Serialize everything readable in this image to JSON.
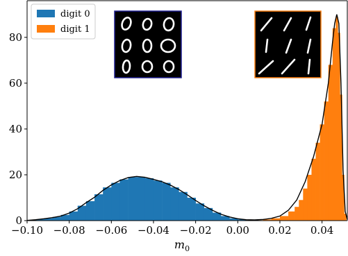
{
  "chart_data": {
    "type": "bar",
    "xlabel": "m",
    "xlabel_sub": "0",
    "xlim": [
      -0.1,
      0.052
    ],
    "ylim": [
      0,
      96
    ],
    "xticks": [
      "-0.10",
      "-0.08",
      "-0.06",
      "-0.04",
      "-0.02",
      "0.00",
      "0.02",
      "0.04"
    ],
    "xtick_values": [
      -0.1,
      -0.08,
      -0.06,
      -0.04,
      -0.02,
      0.0,
      0.02,
      0.04
    ],
    "yticks": [
      "0",
      "20",
      "40",
      "60",
      "80"
    ],
    "ytick_values": [
      0,
      20,
      40,
      60,
      80
    ],
    "grid": false,
    "legend_position": "top-left",
    "series": [
      {
        "name": "digit 0",
        "color": "#1f77b4",
        "x": [
          -0.098,
          -0.094,
          -0.09,
          -0.086,
          -0.082,
          -0.078,
          -0.074,
          -0.07,
          -0.066,
          -0.062,
          -0.058,
          -0.054,
          -0.05,
          -0.046,
          -0.042,
          -0.038,
          -0.034,
          -0.03,
          -0.026,
          -0.022,
          -0.018,
          -0.014,
          -0.01,
          -0.006,
          -0.002,
          0.002,
          0.006
        ],
        "values": [
          0.3,
          0.6,
          1.0,
          1.6,
          2.5,
          4.0,
          6.5,
          8.5,
          11.5,
          14.5,
          16.5,
          18.0,
          19.0,
          19.0,
          18.5,
          17.5,
          16.5,
          14.5,
          12.5,
          10.0,
          7.5,
          5.5,
          3.5,
          2.0,
          1.0,
          0.5,
          0.2
        ]
      },
      {
        "name": "digit 1",
        "color": "#ff7f0e",
        "x": [
          0.01,
          0.014,
          0.018,
          0.022,
          0.026,
          0.028,
          0.03,
          0.032,
          0.034,
          0.036,
          0.038,
          0.04,
          0.042,
          0.044,
          0.046,
          0.047,
          0.048,
          0.049,
          0.05,
          0.051
        ],
        "values": [
          0.2,
          0.5,
          1.0,
          2.0,
          4.0,
          6.0,
          9.0,
          14.0,
          20.0,
          27.0,
          34.0,
          42.0,
          52.0,
          68.0,
          84.0,
          89.0,
          82.0,
          55.0,
          20.0,
          3.0
        ]
      }
    ],
    "density_curve": {
      "color": "#000000",
      "x": [
        -0.1,
        -0.096,
        -0.092,
        -0.088,
        -0.084,
        -0.08,
        -0.076,
        -0.072,
        -0.068,
        -0.064,
        -0.06,
        -0.056,
        -0.052,
        -0.048,
        -0.044,
        -0.04,
        -0.036,
        -0.032,
        -0.028,
        -0.024,
        -0.02,
        -0.016,
        -0.012,
        -0.008,
        -0.004,
        0.0,
        0.004,
        0.008,
        0.012,
        0.016,
        0.02,
        0.024,
        0.028,
        0.032,
        0.036,
        0.04,
        0.043,
        0.045,
        0.046,
        0.047,
        0.048,
        0.049,
        0.05,
        0.051,
        0.052
      ],
      "values": [
        0.1,
        0.4,
        0.8,
        1.3,
        2.0,
        3.3,
        5.2,
        7.8,
        10.2,
        13.2,
        15.6,
        17.5,
        18.8,
        19.3,
        18.9,
        18.0,
        17.0,
        15.5,
        13.6,
        11.3,
        8.8,
        6.5,
        4.5,
        2.8,
        1.6,
        0.8,
        0.4,
        0.3,
        0.5,
        1.0,
        2.0,
        4.5,
        9.0,
        17.0,
        28.0,
        42.0,
        60.0,
        78.0,
        86.0,
        90.0,
        86.0,
        60.0,
        22.0,
        4.0,
        0.5
      ]
    }
  }
}
